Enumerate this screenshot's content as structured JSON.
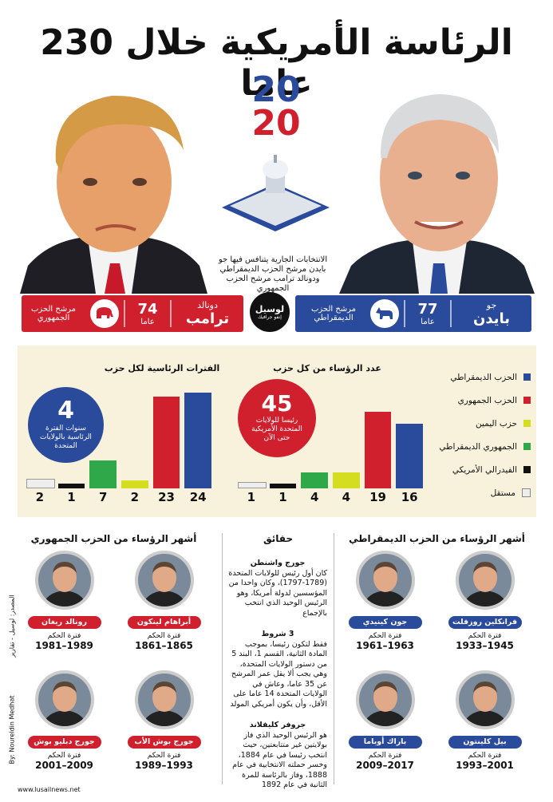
{
  "title": "الرئاسة الأمريكية خلال 230 عاما",
  "year_badge": {
    "top": "20",
    "bottom": "20"
  },
  "caption": "الانتخابات الجارية يتنافس فيها جو بايدن مرشح الحزب الديمقراطي ودونالد ترامب مرشح الحزب الجمهوري",
  "logo": {
    "line1": "لوسيل",
    "line2": "إنفو جرافيك"
  },
  "trump": {
    "first": "دونالد",
    "last": "ترامب",
    "age": "74",
    "age_unit": "عاما",
    "party": "مرشح الحزب الجمهوري"
  },
  "biden": {
    "first": "جو",
    "last": "بايدن",
    "age": "77",
    "age_unit": "عاما",
    "party": "مرشح الحزب الديمقراطي"
  },
  "colors": {
    "blue": "#2a4a9b",
    "red": "#d0202e",
    "yellow": "#d5dd20",
    "green": "#2fa84a",
    "black": "#111111",
    "white": "#eeeeee"
  },
  "terms_chart": {
    "title": "الفترات الرئاسية لكل حزب",
    "circle_value": "4",
    "circle_text": "سنوات الفترة الرئاسية بالولايات المتحدة"
  },
  "count_chart": {
    "title": "عدد الرؤساء من كل حزب",
    "circle_value": "45",
    "circle_text": "رئيسا للولايات المتحدة الأمريكية حتى الآن"
  },
  "chart_data": [
    {
      "type": "bar",
      "title": "الفترات الرئاسية لكل حزب",
      "categories": [
        "مستقل",
        "الفيدرالي الأمريكي",
        "الجمهوري الديمقراطي",
        "حزب اليمين",
        "الحزب الجمهوري",
        "الحزب الديمقراطي"
      ],
      "values": [
        2,
        1,
        7,
        2,
        23,
        24
      ]
    },
    {
      "type": "bar",
      "title": "عدد الرؤساء من كل حزب",
      "categories": [
        "مستقل",
        "الفيدرالي الأمريكي",
        "الجمهوري الديمقراطي",
        "حزب اليمين",
        "الحزب الجمهوري",
        "الحزب الديمقراطي"
      ],
      "values": [
        1,
        1,
        4,
        4,
        19,
        16
      ]
    }
  ],
  "legend": [
    {
      "label": "الحزب الديمقراطي",
      "color": "#2a4a9b"
    },
    {
      "label": "الحزب الجمهوري",
      "color": "#d0202e"
    },
    {
      "label": "حزب اليمين",
      "color": "#d5dd20"
    },
    {
      "label": "الجمهوري الديمقراطي",
      "color": "#2fa84a"
    },
    {
      "label": "الفيدرالي الأمريكي",
      "color": "#111111"
    },
    {
      "label": "مستقل",
      "color": "#eeeeee"
    }
  ],
  "rep_title": "أشهر الرؤساء من الحزب الجمهوري",
  "dem_title": "أشهر الرؤساء من الحزب الديمقراطي",
  "facts_title": "حقائق",
  "term_label": "فترة الحكم",
  "republicans": [
    {
      "name": "أبراهام لينكون",
      "years": "1861–1865"
    },
    {
      "name": "رونالد ريغان",
      "years": "1981–1989"
    },
    {
      "name": "جورج بوش الأب",
      "years": "1989–1993"
    },
    {
      "name": "جورج دبليو بوش",
      "years": "2001–2009"
    }
  ],
  "democrats": [
    {
      "name": "فرانكلين روزفلت",
      "years": "1933–1945"
    },
    {
      "name": "جون كينيدي",
      "years": "1961–1963"
    },
    {
      "name": "بيل كلينتون",
      "years": "1993–2001"
    },
    {
      "name": "باراك أوباما",
      "years": "2009–2017"
    }
  ],
  "facts": [
    {
      "head": "جورج واشنطن",
      "body": "كان أول رئيس للولايات المتحدة (1789-1797)، وكان واحدا من المؤسسين لدولة أمريكا، وهو الرئيس الوحيد الذي انتخب بالإجماع"
    },
    {
      "head": "3 شروط",
      "body": "فقط لتكون رئيسا، بموجب المادة الثانية، القسم 1، البند 5 من دستور الولايات المتحدة، وهي يجب ألا يقل عمر المرشح عن 35 عاما، وعاش في الولايات المتحدة 14 عاما على الأقل، وأن يكون أمريكي المولد"
    },
    {
      "head": "جروفر كليفلاند",
      "body": "هو الرئيس الوحيد الذي فاز بولايتين غير متتابعتين، حيث انتخب رئيسا في عام 1884، وخسر حملته الانتخابية في عام 1888، وفاز بالرئاسة للمرة الثانية في عام 1892"
    }
  ],
  "credit": "By: Noureldin Medhat",
  "source": "المصدر: لوسيل - تقارير",
  "website": "www.lusailnews.net"
}
